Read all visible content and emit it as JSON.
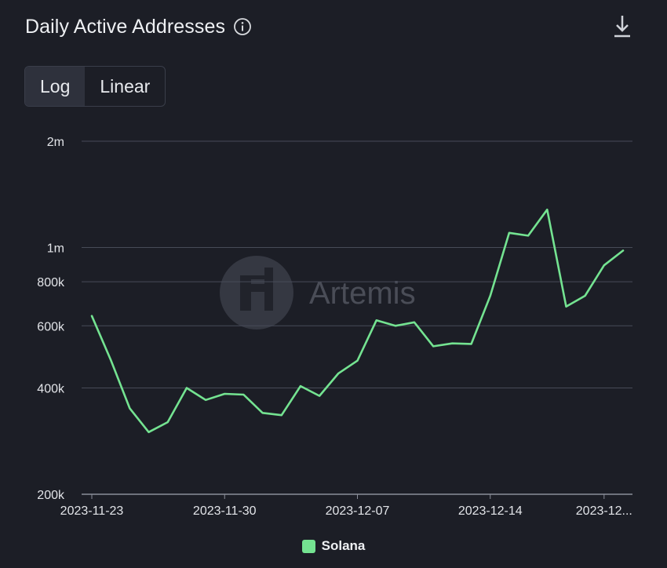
{
  "header": {
    "title": "Daily Active Addresses",
    "info_icon": "info-icon",
    "download_icon": "download-icon"
  },
  "scale_toggle": {
    "options": [
      "Log",
      "Linear"
    ],
    "selected": "Log"
  },
  "watermark": {
    "text": "Artemis"
  },
  "colors": {
    "background": "#1c1e26",
    "series": "#74e391",
    "grid": "#474b58"
  },
  "chart_data": {
    "type": "line",
    "title": "Daily Active Addresses",
    "xlabel": "",
    "ylabel": "",
    "y_scale": "log",
    "ylim": [
      200000,
      2000000
    ],
    "y_ticks": [
      {
        "value": 200000,
        "label": "200k"
      },
      {
        "value": 400000,
        "label": "400k"
      },
      {
        "value": 600000,
        "label": "600k"
      },
      {
        "value": 800000,
        "label": "800k"
      },
      {
        "value": 1000000,
        "label": "1m"
      },
      {
        "value": 2000000,
        "label": "2m"
      }
    ],
    "x_tick_labels": [
      "2023-11-23",
      "2023-11-30",
      "2023-12-07",
      "2023-12-14",
      "2023-12..."
    ],
    "x_tick_dates": [
      "2023-11-23",
      "2023-11-30",
      "2023-12-07",
      "2023-12-14",
      "2023-12-20"
    ],
    "x": [
      "2023-11-23",
      "2023-11-24",
      "2023-11-25",
      "2023-11-26",
      "2023-11-27",
      "2023-11-28",
      "2023-11-29",
      "2023-11-30",
      "2023-12-01",
      "2023-12-02",
      "2023-12-03",
      "2023-12-04",
      "2023-12-05",
      "2023-12-06",
      "2023-12-07",
      "2023-12-08",
      "2023-12-09",
      "2023-12-10",
      "2023-12-11",
      "2023-12-12",
      "2023-12-13",
      "2023-12-14",
      "2023-12-15",
      "2023-12-16",
      "2023-12-17",
      "2023-12-18",
      "2023-12-19",
      "2023-12-20",
      "2023-12-21"
    ],
    "legend_position": "bottom",
    "grid": true,
    "series": [
      {
        "name": "Solana",
        "color": "#74e391",
        "values": [
          640000,
          480000,
          350000,
          300000,
          320000,
          400000,
          370000,
          385000,
          383000,
          340000,
          335000,
          405000,
          380000,
          440000,
          478000,
          622000,
          600000,
          614000,
          525000,
          535000,
          533000,
          730000,
          1100000,
          1080000,
          1280000,
          680000,
          730000,
          890000,
          980000
        ]
      }
    ]
  }
}
